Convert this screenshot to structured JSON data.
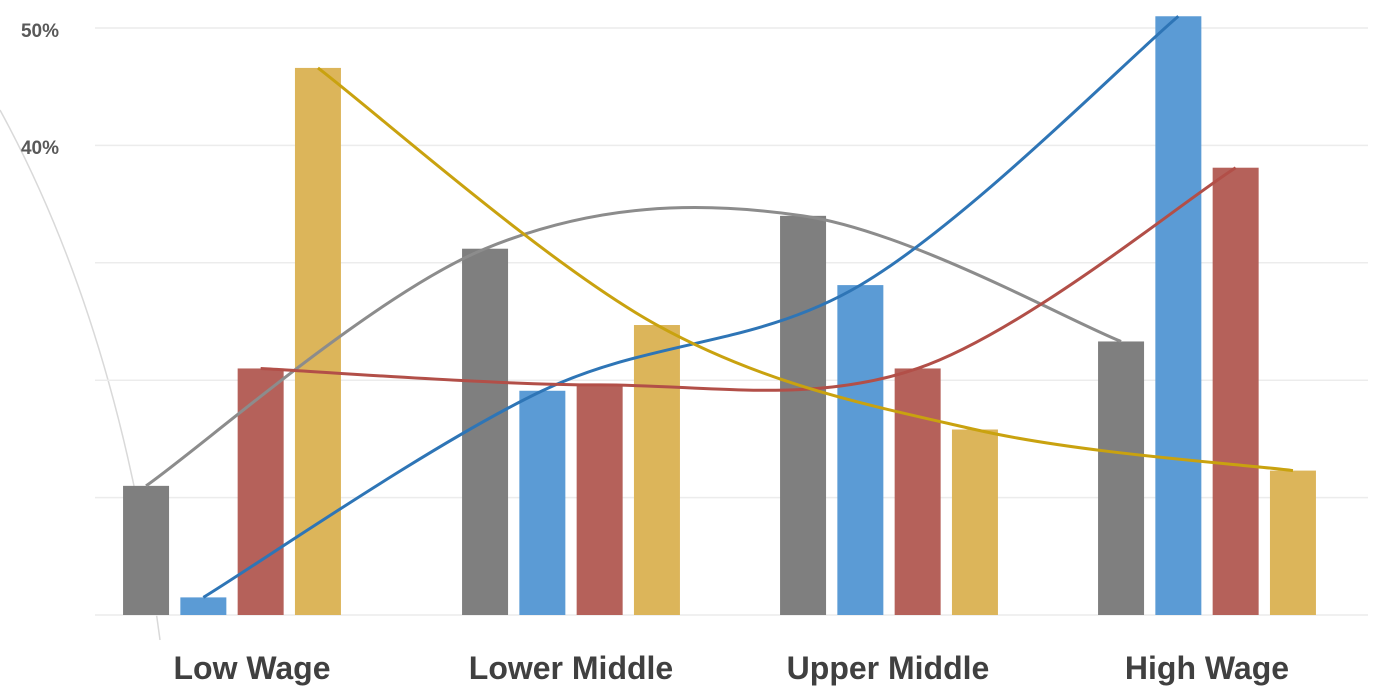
{
  "chart_data": {
    "type": "bar",
    "categories": [
      "Low Wage",
      "Lower Middle",
      "Upper Middle",
      "High Wage"
    ],
    "y_ticks": [
      "50%",
      "40%"
    ],
    "ylim": [
      0,
      50
    ],
    "grid": true,
    "series": [
      {
        "color": "#7f7f7f",
        "values": [
          11,
          31.2,
          34,
          23.3
        ]
      },
      {
        "color": "#5b9bd5",
        "values": [
          1.5,
          19.1,
          28.1,
          51
        ]
      },
      {
        "color": "#b5615a",
        "values": [
          21,
          19.6,
          21,
          38.1
        ]
      },
      {
        "color": "#dcb55a",
        "values": [
          46.6,
          24.7,
          15.8,
          12.3
        ]
      }
    ],
    "trendline_colors": [
      "#8c8c8c",
      "#2e75b6",
      "#b24f48",
      "#c9a20f"
    ]
  }
}
